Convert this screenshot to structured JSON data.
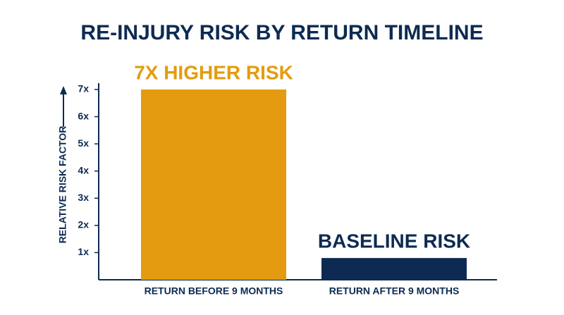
{
  "chart_data": {
    "type": "bar",
    "title": "RE-INJURY RISK BY RETURN TIMELINE",
    "y_label": "RELATIVE RISK FACTOR",
    "categories": [
      "RETURN BEFORE 9 MONTHS",
      "RETURN AFTER 9 MONTHS"
    ],
    "values": [
      7,
      0.8
    ],
    "value_labels": [
      "7X HIGHER RISK",
      "BASELINE RISK"
    ],
    "colors": [
      "#e49b0f",
      "#0d2a52"
    ],
    "ylim": [
      0,
      7
    ],
    "yticks": [
      {
        "value": 1,
        "label": "1x"
      },
      {
        "value": 2,
        "label": "2x"
      },
      {
        "value": 3,
        "label": "3x"
      },
      {
        "value": 4,
        "label": "4x"
      },
      {
        "value": 5,
        "label": "5x"
      },
      {
        "value": 6,
        "label": "6x"
      },
      {
        "value": 7,
        "label": "7x"
      }
    ]
  }
}
